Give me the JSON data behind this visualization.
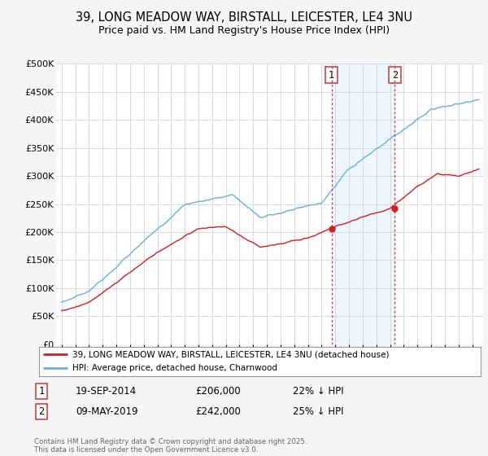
{
  "title_line1": "39, LONG MEADOW WAY, BIRSTALL, LEICESTER, LE4 3NU",
  "title_line2": "Price paid vs. HM Land Registry's House Price Index (HPI)",
  "ylabel_ticks": [
    "£0",
    "£50K",
    "£100K",
    "£150K",
    "£200K",
    "£250K",
    "£300K",
    "£350K",
    "£400K",
    "£450K",
    "£500K"
  ],
  "ytick_values": [
    0,
    50000,
    100000,
    150000,
    200000,
    250000,
    300000,
    350000,
    400000,
    450000,
    500000
  ],
  "hpi_color": "#6baed6",
  "price_color": "#cc2222",
  "sale1_date": "19-SEP-2014",
  "sale1_price": 206000,
  "sale1_pct": "22%",
  "sale2_date": "09-MAY-2019",
  "sale2_price": 242000,
  "sale2_pct": "25%",
  "legend_label1": "39, LONG MEADOW WAY, BIRSTALL, LEICESTER, LE4 3NU (detached house)",
  "legend_label2": "HPI: Average price, detached house, Charnwood",
  "footer": "Contains HM Land Registry data © Crown copyright and database right 2025.\nThis data is licensed under the Open Government Licence v3.0.",
  "background_color": "#f5f5f5",
  "plot_bg_color": "#ffffff",
  "sale1_year": 2014.72,
  "sale2_year": 2019.35,
  "vline_color": "#cc4444",
  "shade_color": "#ddeeff",
  "shade_alpha": 0.5
}
